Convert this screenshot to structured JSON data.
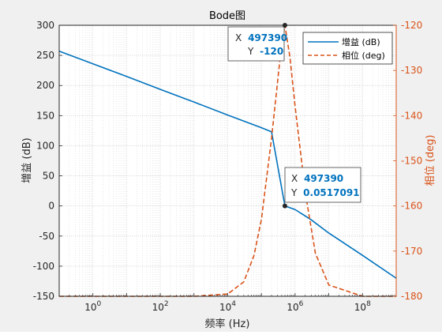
{
  "chart_data": {
    "type": "line",
    "title": "Bode图",
    "xlabel": "频率 (Hz)",
    "ylabel_left": "增益 (dB)",
    "ylabel_right": "相位 (deg)",
    "x_scale": "log",
    "xlim": [
      0.1,
      1000000000
    ],
    "ylim_left": [
      -150,
      300
    ],
    "ylim_right": [
      -180,
      -120
    ],
    "grid": true,
    "legend_position": "top-right",
    "x_ticks": [
      {
        "value": 1,
        "mant": "10",
        "exp": "0"
      },
      {
        "value": 100,
        "mant": "10",
        "exp": "2"
      },
      {
        "value": 10000,
        "mant": "10",
        "exp": "4"
      },
      {
        "value": 1000000,
        "mant": "10",
        "exp": "6"
      },
      {
        "value": 100000000,
        "mant": "10",
        "exp": "8"
      }
    ],
    "y_ticks_left": [
      -150,
      -100,
      -50,
      0,
      50,
      100,
      150,
      200,
      250,
      300
    ],
    "y_ticks_right": [
      -180,
      -170,
      -160,
      -150,
      -140,
      -130,
      -120
    ],
    "series": [
      {
        "name": "增益 (dB)",
        "axis": "left",
        "color": "#0072bd",
        "dash": "solid",
        "points": [
          [
            0.1,
            257
          ],
          [
            1,
            236
          ],
          [
            10,
            215
          ],
          [
            100,
            193.5
          ],
          [
            1000,
            172.5
          ],
          [
            10000,
            151
          ],
          [
            30000,
            141
          ],
          [
            100000,
            130
          ],
          [
            200000,
            123
          ],
          [
            497390,
            0.0517
          ],
          [
            1000000,
            -6
          ],
          [
            3000000,
            -23
          ],
          [
            10000000,
            -45
          ],
          [
            100000000,
            -82
          ],
          [
            1000000000,
            -120
          ]
        ]
      },
      {
        "name": "相位 (deg)",
        "axis": "right",
        "color": "#d95319",
        "dash": "dashed",
        "points": [
          [
            0.1,
            -180
          ],
          [
            1000,
            -180
          ],
          [
            10000,
            -179.5
          ],
          [
            30000,
            -176.8
          ],
          [
            60000,
            -171
          ],
          [
            100000,
            -163
          ],
          [
            200000,
            -145
          ],
          [
            350000,
            -128
          ],
          [
            497390,
            -120
          ],
          [
            700000,
            -127
          ],
          [
            1000000,
            -138
          ],
          [
            2000000,
            -157
          ],
          [
            4000000,
            -170.5
          ],
          [
            10000000,
            -177.5
          ],
          [
            100000000,
            -180
          ],
          [
            1000000000,
            -180
          ]
        ]
      }
    ],
    "datatips": [
      {
        "series": 1,
        "x": 497390,
        "y": -120,
        "x_label": "X",
        "y_label": "Y",
        "x_text": "497390",
        "y_text": "-120"
      },
      {
        "series": 0,
        "x": 497390,
        "y": 0.0517091,
        "x_label": "X",
        "y_label": "Y",
        "x_text": "497390",
        "y_text": "0.0517091"
      }
    ]
  }
}
